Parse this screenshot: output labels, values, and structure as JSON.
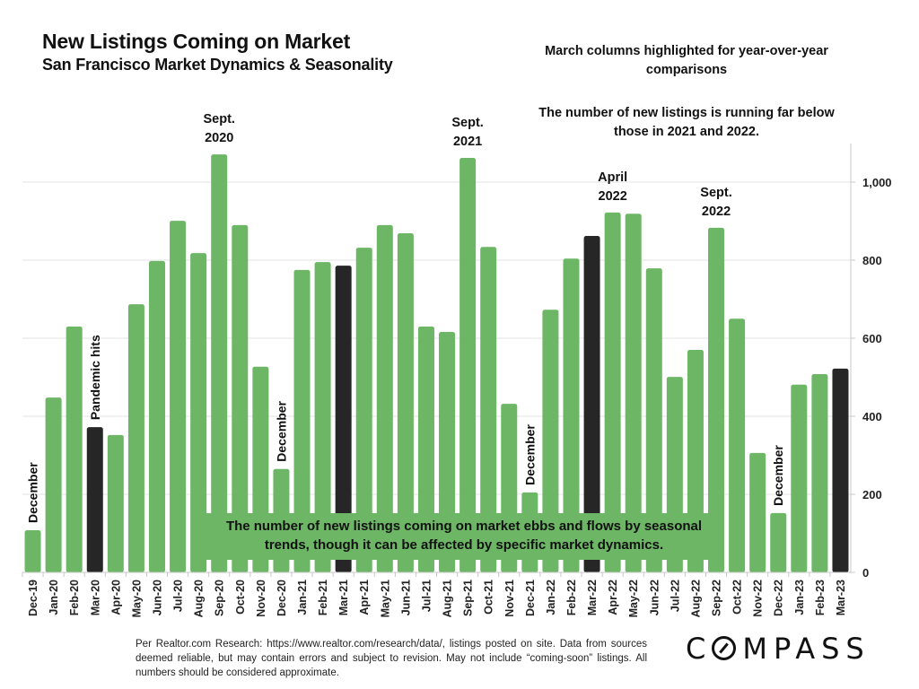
{
  "header": {
    "title": "New Listings Coming on Market",
    "subtitle": "San Francisco Market Dynamics & Seasonality"
  },
  "notes": {
    "march_highlight": "March columns highlighted for year-over-year comparisons",
    "running_below": "The number of new listings is running far below those in 2021 and 2022.",
    "seasonal_callout": "The number of new listings coming on market ebbs and flows by seasonal trends, though it can be affected by specific market dynamics."
  },
  "footer": {
    "source": "Per Realtor.com Research:   https://www.realtor.com/research/data/, listings posted on site. Data from sources deemed reliable, but may contain errors and subject to revision. May not include “coming-soon” listings. All numbers should be considered approximate.",
    "logo": "COMPASS"
  },
  "colors": {
    "bar": "#6cb665",
    "highlight_bar": "#262626",
    "grid": "#e3e3e3",
    "axis": "#c8c8c8"
  },
  "chart_data": {
    "type": "bar",
    "title": "New Listings Coming on Market",
    "subtitle": "San Francisco Market Dynamics & Seasonality",
    "xlabel": "",
    "ylabel": "",
    "y_axis_side": "right",
    "ylim": [
      0,
      1100
    ],
    "yticks": [
      0,
      200,
      400,
      600,
      800,
      1000
    ],
    "ytick_labels": [
      "0",
      "200",
      "400",
      "600",
      "800",
      "1,000"
    ],
    "grid": true,
    "categories": [
      "Dec-19",
      "Jan-20",
      "Feb-20",
      "Mar-20",
      "Apr-20",
      "May-20",
      "Jun-20",
      "Jul-20",
      "Aug-20",
      "Sep-20",
      "Oct-20",
      "Nov-20",
      "Dec-20",
      "Jan-21",
      "Feb-21",
      "Mar-21",
      "Apr-21",
      "May-21",
      "Jun-21",
      "Jul-21",
      "Aug-21",
      "Sep-21",
      "Oct-21",
      "Nov-21",
      "Dec-21",
      "Jan-22",
      "Feb-22",
      "Mar-22",
      "Apr-22",
      "May-22",
      "Jun-22",
      "Jul-22",
      "Aug-22",
      "Sep-22",
      "Oct-22",
      "Nov-22",
      "Dec-22",
      "Jan-23",
      "Feb-23",
      "Mar-23"
    ],
    "values": [
      108,
      448,
      630,
      372,
      352,
      687,
      798,
      901,
      818,
      1071,
      890,
      527,
      265,
      775,
      795,
      786,
      832,
      890,
      869,
      630,
      616,
      1062,
      834,
      432,
      205,
      673,
      804,
      862,
      922,
      919,
      779,
      501,
      570,
      883,
      650,
      306,
      152,
      481,
      508,
      522
    ],
    "highlighted": [
      "Mar-20",
      "Mar-21",
      "Mar-22",
      "Mar-23"
    ],
    "annotations": [
      {
        "category": "Dec-19",
        "text": "December",
        "orientation": "vertical"
      },
      {
        "category": "Mar-20",
        "text": "Pandemic hits",
        "orientation": "vertical"
      },
      {
        "category": "Sep-20",
        "text": "Sept.\n2020",
        "orientation": "horizontal"
      },
      {
        "category": "Dec-20",
        "text": "December",
        "orientation": "vertical"
      },
      {
        "category": "Sep-21",
        "text": "Sept.\n2021",
        "orientation": "horizontal"
      },
      {
        "category": "Dec-21",
        "text": "December",
        "orientation": "vertical"
      },
      {
        "category": "Apr-22",
        "text": "April\n2022",
        "orientation": "horizontal"
      },
      {
        "category": "Sep-22",
        "text": "Sept.\n2022",
        "orientation": "horizontal"
      },
      {
        "category": "Dec-22",
        "text": "December",
        "orientation": "vertical"
      }
    ]
  }
}
